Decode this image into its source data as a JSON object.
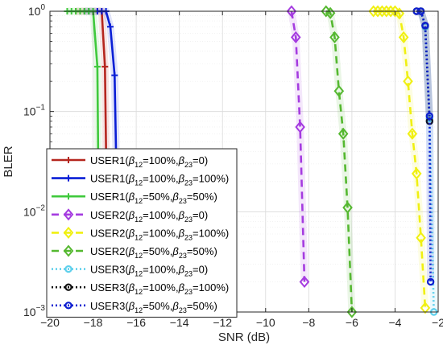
{
  "chart_data": {
    "type": "line",
    "xlabel": "SNR (dB)",
    "ylabel": "BLER",
    "xlim": [
      -20,
      -2
    ],
    "ylim": [
      0.001,
      1
    ],
    "yscale": "log",
    "grid": true,
    "legend_placement": "bottom-left",
    "x_ticks": [
      {
        "v": -20,
        "label": "−20"
      },
      {
        "v": -18,
        "label": "−18"
      },
      {
        "v": -16,
        "label": "−16"
      },
      {
        "v": -14,
        "label": "−14"
      },
      {
        "v": -12,
        "label": "−12"
      },
      {
        "v": -10,
        "label": "−10"
      },
      {
        "v": -8,
        "label": "−8"
      },
      {
        "v": -6,
        "label": "−6"
      },
      {
        "v": -4,
        "label": "−4"
      },
      {
        "v": -2,
        "label": "−2"
      }
    ],
    "y_ticks": [
      {
        "v": 1,
        "base": "10",
        "exp": "0"
      },
      {
        "v": 0.1,
        "base": "10",
        "exp": "−1"
      },
      {
        "v": 0.01,
        "base": "10",
        "exp": "−2"
      },
      {
        "v": 0.001,
        "base": "10",
        "exp": "−3"
      }
    ],
    "series": [
      {
        "user": "USER1",
        "b12": "100%",
        "b23": "0",
        "color": "#b5261e",
        "dash": "",
        "marker": "plus",
        "x": [
          -18.8,
          -18.6,
          -18.4,
          -18.2,
          -18.0,
          -17.8,
          -17.6,
          -17.45,
          -17.3
        ],
        "y": [
          1,
          1,
          1,
          1,
          1,
          1,
          1,
          0.28,
          0.001
        ]
      },
      {
        "user": "USER1",
        "b12": "100%",
        "b23": "100%",
        "color": "#0a1fd6",
        "dash": "",
        "marker": "plus",
        "x": [
          -18.4,
          -18.2,
          -18.0,
          -17.8,
          -17.6,
          -17.4,
          -17.2,
          -17.0,
          -16.8
        ],
        "y": [
          1,
          1,
          1,
          1,
          1,
          1,
          0.7,
          0.23,
          0.001
        ]
      },
      {
        "user": "USER1",
        "b12": "50%",
        "b23": "50%",
        "color": "#3fc93c",
        "dash": "",
        "marker": "plus",
        "x": [
          -19.2,
          -19.0,
          -18.8,
          -18.6,
          -18.4,
          -18.2,
          -18.0,
          -17.8,
          -17.7
        ],
        "y": [
          1,
          1,
          1,
          1,
          1,
          1,
          1,
          0.28,
          0.001
        ]
      },
      {
        "user": "USER2",
        "b12": "100%",
        "b23": "0",
        "color": "#a53ce0",
        "dash": "9,6",
        "marker": "diamond",
        "x": [
          -8.8,
          -8.6,
          -8.4,
          -8.2
        ],
        "y": [
          1,
          0.55,
          0.07,
          0.002
        ]
      },
      {
        "user": "USER2",
        "b12": "100%",
        "b23": "100%",
        "color": "#f0f011",
        "dash": "9,6",
        "marker": "diamond",
        "x": [
          -5.0,
          -4.8,
          -4.6,
          -4.4,
          -4.2,
          -4.0,
          -3.8,
          -3.6,
          -3.4,
          -3.2,
          -3.0,
          -2.8,
          -2.6
        ],
        "y": [
          1,
          1,
          1,
          1,
          1,
          1,
          0.95,
          0.55,
          0.2,
          0.06,
          0.024,
          0.0055,
          0.0011
        ]
      },
      {
        "user": "USER2",
        "b12": "50%",
        "b23": "50%",
        "color": "#55b830",
        "dash": "9,6",
        "marker": "diamond",
        "x": [
          -7.2,
          -7.0,
          -6.8,
          -6.6,
          -6.4,
          -6.2,
          -6.0
        ],
        "y": [
          1,
          0.96,
          0.55,
          0.16,
          0.06,
          0.011,
          0.001
        ]
      },
      {
        "user": "USER3",
        "b12": "100%",
        "b23": "0",
        "color": "#5fd0ec",
        "dash": "2,3",
        "marker": "circle",
        "x": [
          -2.8,
          -2.6,
          -2.4,
          -2.2
        ],
        "y": [
          1,
          0.7,
          0.085,
          0.001
        ]
      },
      {
        "user": "USER3",
        "b12": "100%",
        "b23": "100%",
        "color": "#111111",
        "dash": "2,3",
        "marker": "circle",
        "x": [
          -3.0,
          -2.8,
          -2.6,
          -2.4
        ],
        "y": [
          1,
          1,
          0.72,
          0.08
        ]
      },
      {
        "user": "USER3",
        "b12": "50%",
        "b23": "50%",
        "color": "#0d1fd0",
        "dash": "2,3",
        "marker": "circle",
        "x": [
          -3.0,
          -2.8,
          -2.6,
          -2.4,
          -2.35
        ],
        "y": [
          1,
          1,
          0.72,
          0.09,
          0.002
        ]
      }
    ]
  }
}
